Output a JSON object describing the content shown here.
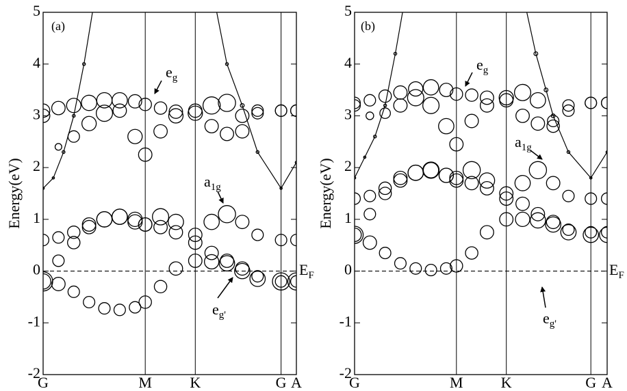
{
  "chart_data": [
    {
      "type": "line",
      "y_label": "Energy(eV)",
      "xlim": [
        0,
        2.48
      ],
      "ylim": [
        -2,
        5
      ],
      "yticks": [
        -2,
        -1,
        0,
        1,
        2,
        3,
        4,
        5
      ],
      "xticks": [
        {
          "value": 0,
          "label": "G"
        },
        {
          "value": 1.0,
          "label": "M"
        },
        {
          "value": 1.49,
          "label": "K"
        },
        {
          "value": 2.33,
          "label": "G"
        },
        {
          "value": 2.48,
          "label": "A"
        }
      ],
      "fermi_level": 0,
      "annotations": [
        {
          "text": "(a)"
        },
        {
          "text": "e",
          "sub": "g"
        },
        {
          "text": "a",
          "sub": "1g"
        },
        {
          "text": "e",
          "sub": "g'"
        },
        {
          "text": "E",
          "sub": "F"
        }
      ],
      "x": [
        0,
        0.15,
        0.3,
        0.45,
        0.6,
        0.75,
        0.9,
        1.0,
        1.15,
        1.3,
        1.49,
        1.65,
        1.8,
        1.95,
        2.1,
        2.33,
        2.48
      ],
      "series": [
        {
          "color": "#000000",
          "values": [
            -0.2,
            -0.25,
            -0.4,
            -0.6,
            -0.72,
            -0.75,
            -0.7,
            -0.6,
            -0.3,
            0.05,
            0.2,
            0.18,
            0.15,
            0.0,
            -0.15,
            -0.2,
            -0.2
          ],
          "sizes": [
            1.0,
            0.7,
            0.6,
            0.6,
            0.6,
            0.6,
            0.6,
            0.65,
            0.65,
            0.7,
            0.7,
            0.75,
            0.8,
            0.8,
            0.8,
            0.9,
            0.9
          ]
        },
        {
          "color": "#000000",
          "values": [
            -0.2,
            0.2,
            0.55,
            0.85,
            1.0,
            1.05,
            0.95,
            0.9,
            0.85,
            0.75,
            0.55,
            0.35,
            0.2,
            0.05,
            -0.1,
            -0.2,
            -0.2
          ],
          "sizes": [
            0.8,
            0.6,
            0.65,
            0.7,
            0.8,
            0.8,
            0.75,
            0.7,
            0.7,
            0.7,
            0.7,
            0.7,
            0.7,
            0.7,
            0.6,
            0.6,
            0.6
          ]
        },
        {
          "color": "#000000",
          "values": [
            0.6,
            0.65,
            0.75,
            0.9,
            1.0,
            1.05,
            1.0,
            0.9,
            1.05,
            0.95,
            0.7,
            0.95,
            1.1,
            0.95,
            0.7,
            0.6,
            0.6
          ],
          "sizes": [
            0.6,
            0.6,
            0.65,
            0.7,
            0.8,
            0.8,
            0.75,
            0.7,
            0.85,
            0.8,
            0.7,
            0.8,
            0.9,
            0.7,
            0.6,
            0.6,
            0.6
          ]
        },
        {
          "color": "#000000",
          "values": [
            3.1,
            3.15,
            3.2,
            3.25,
            3.3,
            3.3,
            3.28,
            3.22,
            3.15,
            3.08,
            3.05,
            3.2,
            3.25,
            3.0,
            3.1,
            3.1,
            3.1
          ],
          "sizes": [
            0.7,
            0.7,
            0.75,
            0.8,
            0.8,
            0.8,
            0.7,
            0.65,
            0.65,
            0.7,
            0.75,
            0.9,
            0.9,
            0.7,
            0.6,
            0.6,
            0.6
          ]
        },
        {
          "color": "#000000",
          "values": [
            3.0,
            2.4,
            2.6,
            2.85,
            3.05,
            3.1,
            2.6,
            2.25,
            2.7,
            3.0,
            3.1,
            2.8,
            2.65,
            2.7,
            3.05,
            3.1,
            3.1
          ],
          "sizes": [
            0.7,
            0.35,
            0.6,
            0.75,
            0.85,
            0.7,
            0.75,
            0.7,
            0.7,
            0.75,
            0.7,
            0.7,
            0.7,
            0.7,
            0.6,
            0.6,
            0.6
          ]
        },
        {
          "color": "#000000",
          "line": true,
          "x": [
            0,
            0.1,
            0.2,
            0.3,
            0.4,
            0.5,
            null,
            1.68,
            1.8,
            1.95,
            2.1,
            2.33,
            2.48
          ],
          "values": [
            1.6,
            1.8,
            2.3,
            3.0,
            4.0,
            5.2,
            null,
            5.2,
            4.0,
            3.2,
            2.3,
            1.6,
            2.1
          ],
          "sizes": [
            0.12,
            0.12,
            0.15,
            0.15,
            0.15,
            0.15,
            null,
            0.15,
            0.15,
            0.2,
            0.15,
            0.12,
            0.12
          ]
        }
      ]
    },
    {
      "type": "line",
      "y_label": "Energy(eV)",
      "xlim": [
        0,
        2.48
      ],
      "ylim": [
        -2,
        5
      ],
      "yticks": [
        -2,
        -1,
        0,
        1,
        2,
        3,
        4,
        5
      ],
      "xticks": [
        {
          "value": 0,
          "label": "G"
        },
        {
          "value": 1.0,
          "label": "M"
        },
        {
          "value": 1.49,
          "label": "K"
        },
        {
          "value": 2.32,
          "label": "G"
        },
        {
          "value": 2.48,
          "label": "A"
        }
      ],
      "fermi_level": 0,
      "annotations": [
        {
          "text": "(b)"
        },
        {
          "text": "e",
          "sub": "g"
        },
        {
          "text": "a",
          "sub": "1g"
        },
        {
          "text": "e",
          "sub": "g'"
        },
        {
          "text": "E",
          "sub": "F"
        }
      ],
      "x": [
        0,
        0.15,
        0.3,
        0.45,
        0.6,
        0.75,
        0.9,
        1.0,
        1.15,
        1.3,
        1.49,
        1.65,
        1.8,
        1.95,
        2.1,
        2.32,
        2.48
      ],
      "series": [
        {
          "color": "#000000",
          "values": [
            0.7,
            0.55,
            0.35,
            0.15,
            0.05,
            0.02,
            0.05,
            0.1,
            0.35,
            0.75,
            1.0,
            1.0,
            0.98,
            0.9,
            0.75,
            0.7,
            0.7
          ],
          "sizes": [
            0.9,
            0.7,
            0.6,
            0.6,
            0.6,
            0.6,
            0.6,
            0.65,
            0.65,
            0.7,
            0.7,
            0.75,
            0.8,
            0.8,
            0.8,
            0.8,
            0.8
          ]
        },
        {
          "color": "#000000",
          "values": [
            0.7,
            1.1,
            1.5,
            1.75,
            1.9,
            1.95,
            1.85,
            1.8,
            1.7,
            1.6,
            1.5,
            1.3,
            1.1,
            0.95,
            0.8,
            0.75,
            0.75
          ],
          "sizes": [
            0.7,
            0.6,
            0.65,
            0.7,
            0.8,
            0.8,
            0.75,
            0.7,
            0.7,
            0.7,
            0.7,
            0.7,
            0.7,
            0.7,
            0.6,
            0.6,
            0.6
          ]
        },
        {
          "color": "#000000",
          "values": [
            1.4,
            1.45,
            1.6,
            1.8,
            1.9,
            1.95,
            1.85,
            1.75,
            1.95,
            1.75,
            1.4,
            1.7,
            1.95,
            1.7,
            1.45,
            1.4,
            1.4
          ],
          "sizes": [
            0.6,
            0.6,
            0.65,
            0.7,
            0.8,
            0.85,
            0.75,
            0.7,
            0.9,
            0.8,
            0.7,
            0.8,
            0.9,
            0.7,
            0.6,
            0.6,
            0.6
          ]
        },
        {
          "color": "#000000",
          "values": [
            3.25,
            3.3,
            3.38,
            3.45,
            3.52,
            3.55,
            3.5,
            3.42,
            3.4,
            3.35,
            3.35,
            3.45,
            3.3,
            2.9,
            3.2,
            3.25,
            3.25
          ],
          "sizes": [
            0.6,
            0.6,
            0.65,
            0.7,
            0.75,
            0.8,
            0.7,
            0.65,
            0.65,
            0.7,
            0.75,
            0.85,
            0.8,
            0.6,
            0.6,
            0.6,
            0.6
          ]
        },
        {
          "color": "#000000",
          "values": [
            3.2,
            3.0,
            3.05,
            3.2,
            3.35,
            3.2,
            2.8,
            2.45,
            2.9,
            3.2,
            3.3,
            3.0,
            2.85,
            2.8,
            3.1,
            3.25,
            3.25
          ],
          "sizes": [
            0.6,
            0.4,
            0.55,
            0.7,
            0.85,
            0.85,
            0.8,
            0.7,
            0.7,
            0.7,
            0.7,
            0.7,
            0.7,
            0.65,
            0.6,
            0.6,
            0.6
          ]
        },
        {
          "color": "#000000",
          "line": true,
          "x": [
            0,
            0.1,
            0.2,
            0.3,
            0.4,
            0.48,
            null,
            1.68,
            1.78,
            1.88,
            1.95,
            2.1,
            2.32,
            2.48
          ],
          "values": [
            1.8,
            2.2,
            2.6,
            3.2,
            4.2,
            5.1,
            null,
            5.1,
            4.2,
            3.5,
            3.0,
            2.3,
            1.8,
            2.3
          ],
          "sizes": [
            0.12,
            0.12,
            0.15,
            0.15,
            0.15,
            0.15,
            null,
            0.15,
            0.2,
            0.2,
            0.2,
            0.15,
            0.12,
            0.12
          ]
        }
      ]
    }
  ]
}
